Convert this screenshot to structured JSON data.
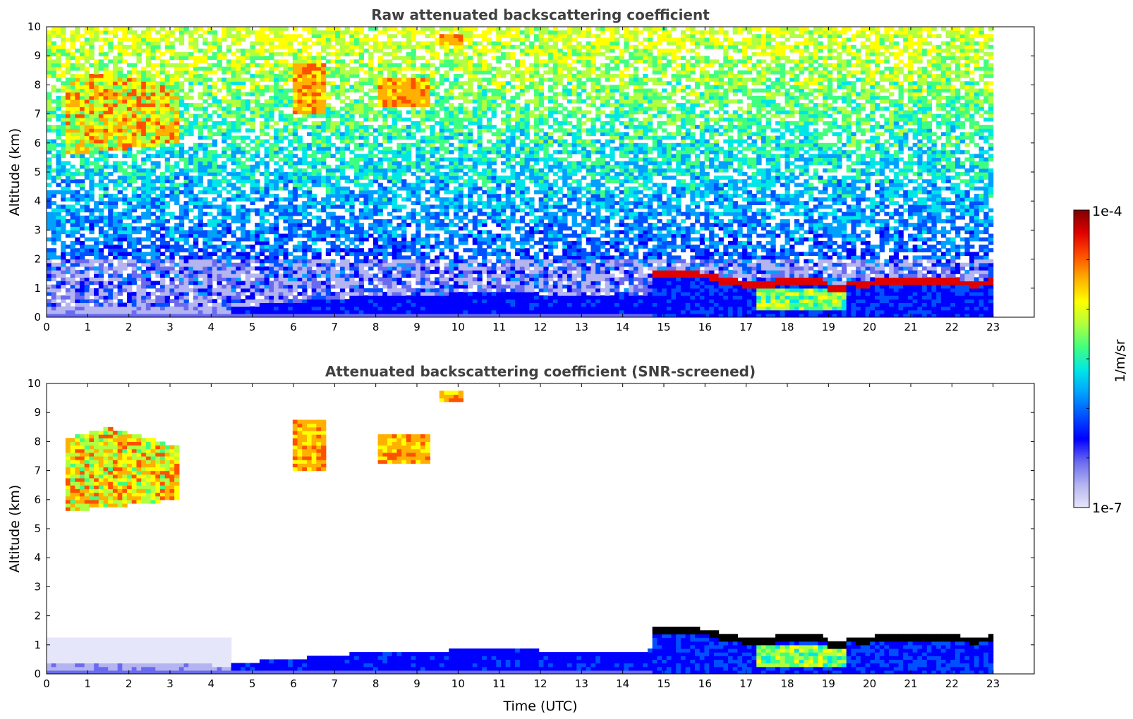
{
  "chart_data": [
    {
      "type": "heatmap",
      "title": "Raw attenuated backscattering coefficient",
      "xlabel": "",
      "ylabel": "Altitude (km)",
      "xlim": [
        0,
        24
      ],
      "ylim": [
        0,
        10
      ],
      "xticks": [
        "0",
        "1",
        "2",
        "3",
        "4",
        "5",
        "6",
        "7",
        "8",
        "9",
        "10",
        "11",
        "12",
        "13",
        "14",
        "15",
        "16",
        "17",
        "18",
        "19",
        "20",
        "21",
        "22",
        "23"
      ],
      "yticks": [
        "0",
        "1",
        "2",
        "3",
        "4",
        "5",
        "6",
        "7",
        "8",
        "9",
        "10"
      ],
      "data_end_time": 23,
      "grid": false,
      "features": [
        {
          "kind": "cirrus",
          "t": [
            0.5,
            3.2
          ],
          "alt": [
            5.5,
            8.6
          ],
          "value": "high"
        },
        {
          "kind": "boundary-layer",
          "t": [
            0,
            23
          ],
          "alt": [
            0,
            1.2
          ],
          "value": "low"
        },
        {
          "kind": "cloud-top-layer",
          "t": [
            14.7,
            23
          ],
          "alt": [
            1.0,
            1.6
          ],
          "value": "max"
        }
      ]
    },
    {
      "type": "heatmap",
      "title": "Attenuated backscattering coefficient (SNR-screened)",
      "xlabel": "Time (UTC)",
      "ylabel": "Altitude (km)",
      "xlim": [
        0,
        24
      ],
      "ylim": [
        0,
        10
      ],
      "xticks": [
        "0",
        "1",
        "2",
        "3",
        "4",
        "5",
        "6",
        "7",
        "8",
        "9",
        "10",
        "11",
        "12",
        "13",
        "14",
        "15",
        "16",
        "17",
        "18",
        "19",
        "20",
        "21",
        "22",
        "23"
      ],
      "yticks": [
        "0",
        "1",
        "2",
        "3",
        "4",
        "5",
        "6",
        "7",
        "8",
        "9",
        "10"
      ],
      "data_end_time": 23,
      "grid": false
    }
  ],
  "colorbar": {
    "label": "1/m/sr",
    "max_label": "1e-4",
    "min_label": "1e-7",
    "colormap": [
      "#e6e6fa",
      "#b4b4f0",
      "#6a6af0",
      "#0000ff",
      "#0050ff",
      "#00a0ff",
      "#00e6e6",
      "#40ff80",
      "#b0ff40",
      "#ffff00",
      "#ffb000",
      "#ff5000",
      "#e00000",
      "#800000"
    ]
  }
}
